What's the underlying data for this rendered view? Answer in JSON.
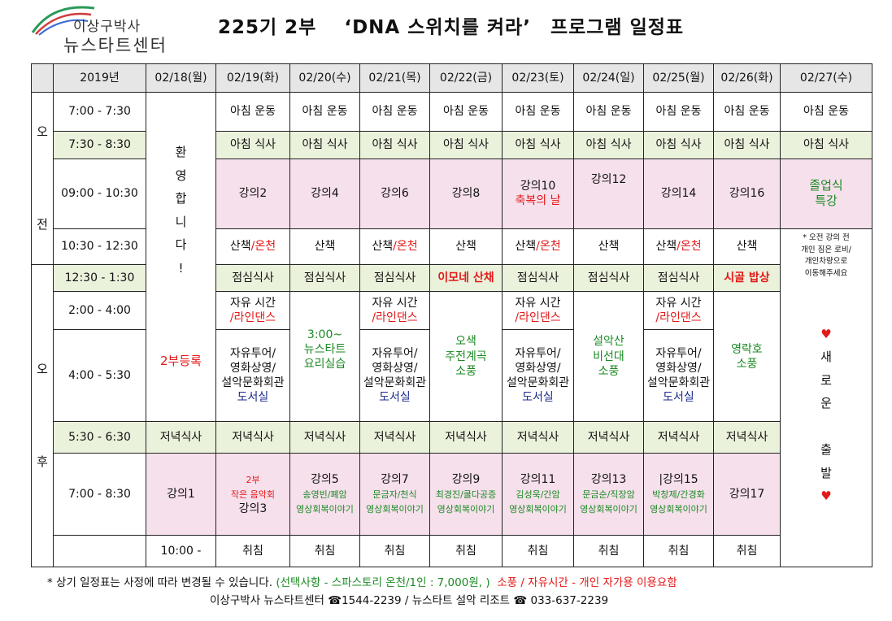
{
  "logo": {
    "line1": "이상구박사",
    "line2": "뉴스타트센터"
  },
  "title": {
    "part1": "225기 2부",
    "part2": "‘DNA 스위치를 켜라’",
    "part3": "프로그램 일정표"
  },
  "header": {
    "year": "2019년",
    "dates": [
      "02/18(월)",
      "02/19(화)",
      "02/20(수)",
      "02/21(목)",
      "02/22(금)",
      "02/23(토)",
      "02/24(일)",
      "02/25(월)",
      "02/26(화)",
      "02/27(수)"
    ]
  },
  "periods": {
    "am1": "오",
    "am2": "전",
    "pm1": "오",
    "pm2": "후"
  },
  "times": [
    "7:00 - 7:30",
    "7:30 - 8:30",
    "09:00 - 10:30",
    "10:30 - 12:30",
    "12:30 - 1:30",
    "2:00 - 4:00",
    "4:00 - 5:30",
    "5:30 - 6:30",
    "7:00 - 8:30",
    "10:00 -"
  ],
  "col18": {
    "welcome": [
      "환",
      "영",
      "합",
      "니",
      "다",
      "!"
    ],
    "reg": "2부등록",
    "dinner": "저녁식사",
    "lec": "강의1",
    "sleep": "취침"
  },
  "col27": {
    "exercise": "아침 운동",
    "breakfast": "아침 식사",
    "lec1": "졸업식",
    "lec2": "특강",
    "note": [
      "* 오전 강의 전",
      "개인 짐은 로비/",
      "개인차량으로",
      "이동해주세요"
    ],
    "heart": "♥",
    "newstart": [
      "새",
      "로",
      "운"
    ],
    "depart": [
      "출",
      "발"
    ]
  },
  "r_exercise": [
    "아침 운동",
    "아침 운동",
    "아침 운동",
    "아침 운동",
    "아침 운동",
    "아침 운동",
    "아침 운동",
    "아침 운동"
  ],
  "r_breakfast": [
    "아침 식사",
    "아침 식사",
    "아침 식사",
    "아침 식사",
    "아침 식사",
    "아침 식사",
    "아침 식사",
    "아침 식사"
  ],
  "r_lecture": {
    "d19": "강의2",
    "d20": "강의4",
    "d21": "강의6",
    "d22": "강의8",
    "d23a": "강의10",
    "d23b": "축복의 날",
    "d24": "강의12",
    "d25": "강의14",
    "d26": "강의16"
  },
  "r_walk": {
    "walk": "산책",
    "spa": "/온천"
  },
  "r_lunch": {
    "d19": "점심식사",
    "d20": "점심식사",
    "d21": "점심식사",
    "d22": "이모네 산채",
    "d23": "점심식사",
    "d24": "점심식사",
    "d25": "점심식사",
    "d26": "시골 밥상"
  },
  "free": {
    "l1": "자유 시간",
    "l2": "/라인댄스",
    "tour1": "자유투어/",
    "tour2": "영화상영/",
    "tour3": "설악문화회관",
    "lib": "도서실"
  },
  "d20pm": [
    "3:00~",
    "뉴스타트",
    "요리실습"
  ],
  "d22pm": [
    "오색",
    "주전계곡",
    "소풍"
  ],
  "d24pm": [
    "설악산",
    "비선대",
    "소풍"
  ],
  "d26pm": [
    "영락호",
    "소풍"
  ],
  "r_dinner": [
    "저녁식사",
    "저녁식사",
    "저녁식사",
    "저녁식사",
    "저녁식사",
    "저녁식사",
    "저녁식사",
    "저녁식사"
  ],
  "r_evening": {
    "d19a": "2부",
    "d19b": "작은 음악회",
    "d19c": "강의3",
    "d20a": "강의5",
    "d20b": "송영빈/폐암",
    "d20c": "영상회복이야기",
    "d21a": "강의7",
    "d21b": "문금자/천식",
    "d21c": "영상회복이야기",
    "d22a": "강의9",
    "d22b": "최경진/쿨다공증",
    "d22c": "영상회복이야기",
    "d23a": "강의11",
    "d23b": "김성욱/간암",
    "d23c": "영상회복이야기",
    "d24a": "강의13",
    "d24b": "문금순/직장암",
    "d24c": "영상회복이야기",
    "d25a": "|강의15",
    "d25b": "박창제/간경화",
    "d25c": "영상회복이야기",
    "d26a": "강의17"
  },
  "r_sleep": [
    "취침",
    "취침",
    "취침",
    "취침",
    "취침",
    "취침",
    "취침",
    "취침"
  ],
  "footer": {
    "line1a": "* 상기 일정표는 사정에 따라 변경될 수 있습니다.",
    "line1b": "(선택사항 - 스파스토리 온천/1인 : 7,000원, )",
    "line1c": "소풍 / 자유시간 - 개인 자가용 이용요함",
    "line2": "이상구박사 뉴스타트센터 ☎1544-2239  /  뉴스타트 설악 리조트 ☎ 033-637-2239"
  }
}
